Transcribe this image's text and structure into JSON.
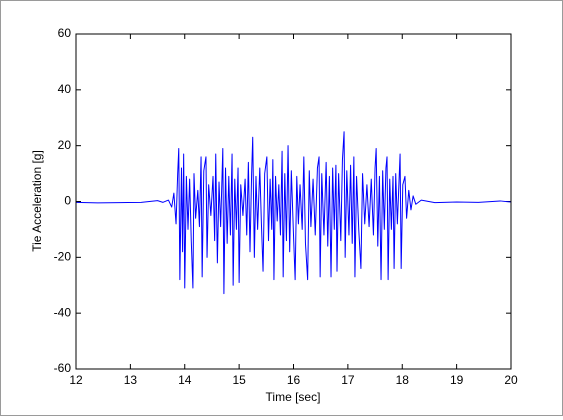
{
  "chart_data": {
    "type": "line",
    "xlabel": "Time [sec]",
    "ylabel": "Tie Acceleration [g]",
    "xlim": [
      12,
      20
    ],
    "ylim": [
      -60,
      60
    ],
    "xticks": [
      12,
      13,
      14,
      15,
      16,
      17,
      18,
      19,
      20
    ],
    "yticks": [
      -60,
      -40,
      -20,
      0,
      20,
      40,
      60
    ],
    "grid": false,
    "x": [
      12.0,
      12.4,
      12.8,
      13.2,
      13.5,
      13.6,
      13.7,
      13.76,
      13.8,
      13.84,
      13.87,
      13.89,
      13.91,
      13.94,
      13.96,
      13.98,
      14.0,
      14.03,
      14.06,
      14.09,
      14.12,
      14.15,
      14.17,
      14.2,
      14.24,
      14.27,
      14.3,
      14.32,
      14.35,
      14.39,
      14.41,
      14.44,
      14.48,
      14.52,
      14.55,
      14.57,
      14.6,
      14.63,
      14.66,
      14.7,
      14.72,
      14.75,
      14.78,
      14.81,
      14.84,
      14.87,
      14.89,
      14.92,
      14.95,
      14.98,
      15.0,
      15.03,
      15.07,
      15.11,
      15.14,
      15.17,
      15.2,
      15.23,
      15.25,
      15.28,
      15.31,
      15.34,
      15.38,
      15.41,
      15.44,
      15.47,
      15.51,
      15.54,
      15.57,
      15.6,
      15.62,
      15.64,
      15.67,
      15.7,
      15.73,
      15.76,
      15.79,
      15.81,
      15.84,
      15.87,
      15.9,
      15.93,
      15.96,
      16.0,
      16.03,
      16.06,
      16.09,
      16.12,
      16.16,
      16.19,
      16.22,
      16.26,
      16.29,
      16.32,
      16.36,
      16.4,
      16.44,
      16.47,
      16.49,
      16.52,
      16.56,
      16.6,
      16.63,
      16.66,
      16.69,
      16.72,
      16.75,
      16.78,
      16.8,
      16.83,
      16.87,
      16.9,
      16.93,
      16.95,
      16.98,
      17.02,
      17.05,
      17.08,
      17.11,
      17.13,
      17.16,
      17.2,
      17.24,
      17.27,
      17.31,
      17.35,
      17.39,
      17.43,
      17.47,
      17.5,
      17.52,
      17.55,
      17.58,
      17.61,
      17.64,
      17.67,
      17.7,
      17.72,
      17.74,
      17.77,
      17.8,
      17.83,
      17.85,
      17.88,
      17.91,
      17.94,
      17.96,
      17.98,
      18.01,
      18.05,
      18.08,
      18.12,
      18.16,
      18.2,
      18.25,
      18.35,
      18.6,
      19.0,
      19.4,
      19.8,
      20.0
    ],
    "series": [
      {
        "name": "Tie Acceleration",
        "color": "#0000ff",
        "values": [
          -0.3,
          -0.5,
          -0.4,
          -0.3,
          0.3,
          -0.3,
          0.5,
          -2,
          3,
          -8,
          10,
          19,
          -28,
          12,
          -18,
          17,
          -31,
          9,
          -10,
          8,
          -14,
          -31,
          10,
          -6,
          4,
          -9,
          16,
          -27,
          11,
          16,
          -20,
          6,
          -5,
          9,
          -14,
          17,
          -22,
          7,
          -9,
          19,
          -33,
          12,
          -15,
          9,
          -12,
          17,
          -30,
          8,
          -10,
          12,
          -29,
          6,
          -5,
          8,
          -12,
          14,
          -18,
          10,
          23,
          -20,
          9,
          -10,
          12,
          -8,
          -25,
          10,
          16,
          -14,
          8,
          -10,
          15,
          -28,
          9,
          -7,
          6,
          -12,
          18,
          -27,
          10,
          -14,
          20,
          -18,
          11,
          -12,
          -28,
          9,
          -8,
          6,
          -10,
          16,
          -15,
          -28,
          11,
          -9,
          8,
          -12,
          12,
          16,
          -27,
          10,
          -12,
          14,
          -16,
          9,
          -27,
          12,
          -10,
          13,
          -25,
          10,
          -14,
          15,
          25,
          -20,
          11,
          -12,
          13,
          -15,
          16,
          -27,
          9,
          -10,
          -24,
          10,
          -8,
          6,
          -9,
          8,
          -12,
          12,
          19,
          -16,
          9,
          -28,
          11,
          -10,
          12,
          16,
          -28,
          8,
          -10,
          9,
          -24,
          10,
          -8,
          7,
          17,
          -24,
          6,
          9,
          -6,
          4,
          -3,
          2,
          -1,
          0.5,
          -0.4,
          -0.2,
          -0.3,
          0.2,
          -0.2
        ]
      }
    ]
  }
}
